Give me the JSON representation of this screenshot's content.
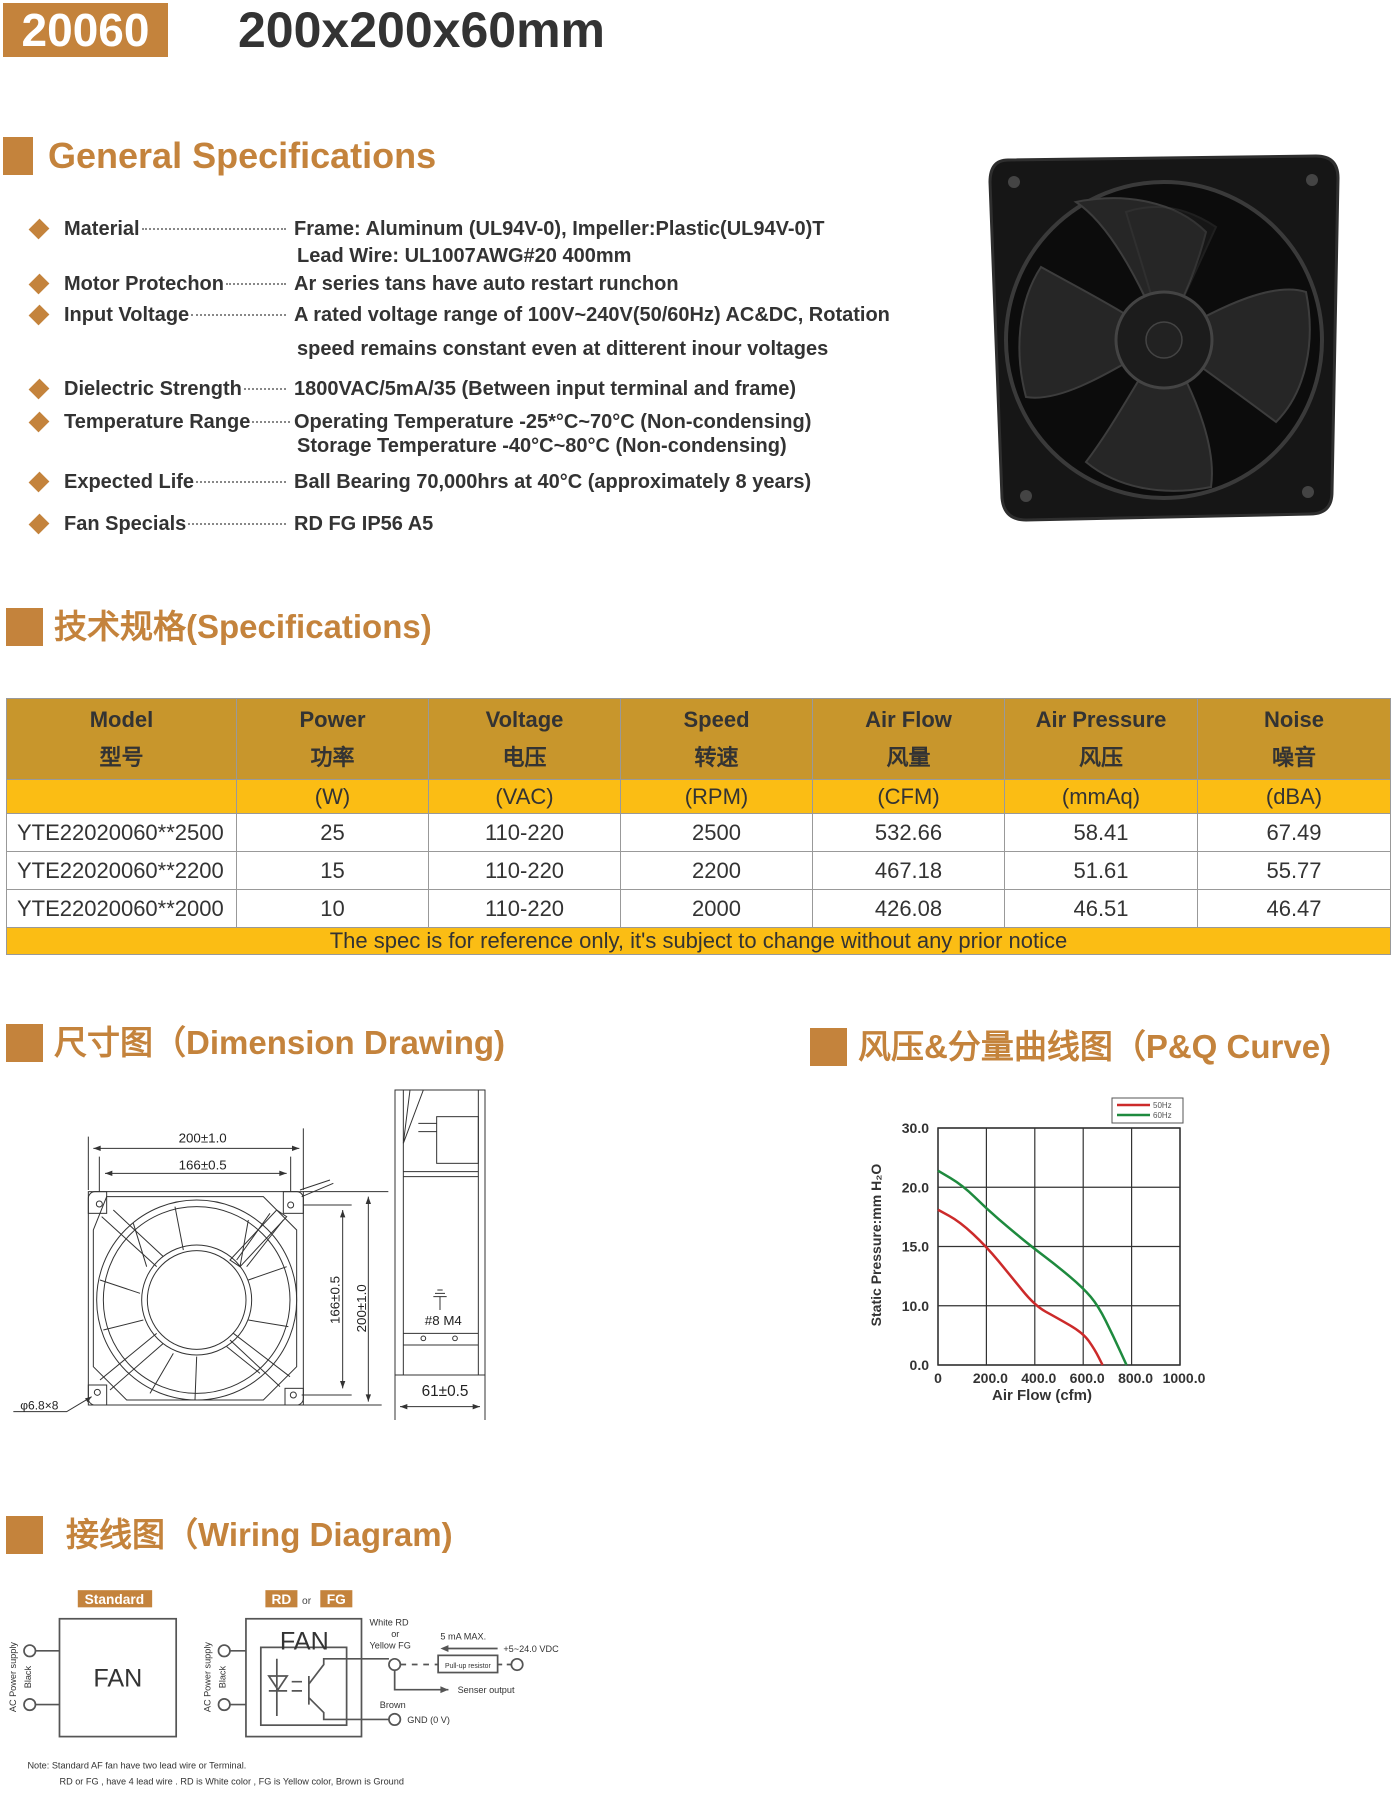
{
  "header": {
    "model": "20060",
    "title": "200x200x60mm"
  },
  "colors": {
    "accent": "#c4833c",
    "table_header": "#c8962c",
    "table_unit_row": "#fbbd14",
    "curve_50hz": "#cc2a2a",
    "curve_60hz": "#1e8a3e"
  },
  "general": {
    "heading": "General Specifications",
    "items": [
      {
        "label": "Material",
        "values": [
          "Frame: Aluminum (UL94V-0), Impeller:Plastic(UL94V-0)T",
          "Lead Wire: UL1007AWG#20 400mm"
        ]
      },
      {
        "label": "Motor Protechon",
        "values": [
          "Ar series tans have auto restart runchon"
        ]
      },
      {
        "label": "Input Voltage",
        "values": [
          "A rated voltage range of 100V~240V(50/60Hz) AC&DC, Rotation",
          "speed remains constant even at ditterent inour voltages"
        ]
      },
      {
        "label": "Dielectric Strength",
        "values": [
          "1800VAC/5mA/35 (Between input terminal and frame)"
        ]
      },
      {
        "label": "Temperature Range",
        "values": [
          "Operating Temperature -25*°C~70°C (Non-condensing)",
          "Storage Temperature -40°C~80°C (Non-condensing)"
        ]
      },
      {
        "label": "Expected Life",
        "values": [
          "Ball Bearing 70,000hrs at 40°C (approximately 8 years)"
        ]
      },
      {
        "label": "Fan Specials",
        "values": [
          "RD FG IP56 A5"
        ]
      }
    ]
  },
  "specs": {
    "heading": "技术规格(Specifications)",
    "columns": [
      {
        "en": "Model",
        "cn": "型号",
        "unit": ""
      },
      {
        "en": "Power",
        "cn": "功率",
        "unit": "(W)"
      },
      {
        "en": "Voltage",
        "cn": "电压",
        "unit": "(VAC)"
      },
      {
        "en": "Speed",
        "cn": "转速",
        "unit": "(RPM)"
      },
      {
        "en": "Air Flow",
        "cn": "风量",
        "unit": "(CFM)"
      },
      {
        "en": "Air Pressure",
        "cn": "风压",
        "unit": "(mmAq)"
      },
      {
        "en": "Noise",
        "cn": "噪音",
        "unit": "(dBA)"
      }
    ],
    "rows": [
      [
        "YTE22020060**2500",
        "25",
        "110-220",
        "2500",
        "532.66",
        "58.41",
        "67.49"
      ],
      [
        "YTE22020060**2200",
        "15",
        "110-220",
        "2200",
        "467.18",
        "51.61",
        "55.77"
      ],
      [
        "YTE22020060**2000",
        "10",
        "110-220",
        "2000",
        "426.08",
        "46.51",
        "46.47"
      ]
    ],
    "footnote": "The spec is for reference only, it's subject to change without any prior notice"
  },
  "dimension": {
    "heading": "尺寸图（Dimension Drawing)",
    "labels": {
      "outer_width": "200±1.0",
      "hole_width": "166±0.5",
      "hole_height": "166±0.5",
      "outer_height": "200±1.0",
      "holes": "φ6.8×8",
      "ground": "#8 M4",
      "depth": "61±0.5"
    }
  },
  "chart_data": {
    "type": "line",
    "title": "风压&分量曲线图（P&Q Curve)",
    "xlabel": "Air Flow (cfm)",
    "ylabel": "Static Pressure:mm H₂O",
    "xlim": [
      0,
      1000
    ],
    "x_ticks": [
      "0",
      "200.0",
      "400.0",
      "600.0",
      "800.0",
      "1000.0"
    ],
    "x_tick_values": [
      0,
      200,
      400,
      600,
      800,
      1000
    ],
    "y_ticks": [
      "0.0",
      "10.0",
      "15.0",
      "20.0",
      "30.0"
    ],
    "y_tick_values": [
      0,
      10,
      15,
      20,
      30
    ],
    "grid": true,
    "legend": "top-right",
    "series": [
      {
        "name": "50Hz",
        "color": "#cc2a2a",
        "x": [
          0,
          90,
          200,
          297,
          400,
          490,
          600,
          648,
          680
        ],
        "y": [
          18.1,
          17.1,
          15,
          12.6,
          10,
          8.0,
          5.4,
          2.6,
          0
        ]
      },
      {
        "name": "60Hz",
        "color": "#1e8a3e",
        "x": [
          0,
          103,
          200,
          297,
          386,
          490,
          600,
          662,
          724,
          779
        ],
        "y": [
          22.8,
          20.3,
          18.2,
          16.5,
          15,
          13.4,
          11.5,
          10,
          4.9,
          0
        ]
      }
    ]
  },
  "wiring": {
    "heading": "接线图（Wiring Diagram)",
    "standard_label": "Standard",
    "rd_label": "RD",
    "or_label": "or",
    "fg_label": "FG",
    "fan_label": "FAN",
    "ac_supply": "AC Power supply",
    "black": "Black",
    "white_rd": "White  RD",
    "or_small": "or",
    "yellow_fg": "Yellow FG",
    "current": "5 mA MAX.",
    "vdc": "+5~24.0 VDC",
    "pullup": "Pull-up resistor",
    "sensor": "Senser output",
    "brown": "Brown",
    "gnd": "GND (0 V)",
    "note1": "Note: Standard AF fan have two lead wire or Terminal.",
    "note2": "RD or FG , have 4 lead wire . RD is White color , FG is Yellow color, Brown is Ground"
  }
}
